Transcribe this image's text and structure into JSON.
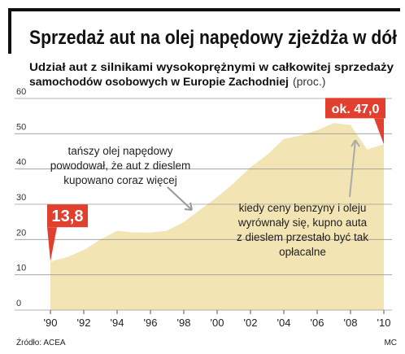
{
  "chart_data": {
    "type": "area",
    "title": "Sprzedaż aut na olej napędowy zjeżdża w dół",
    "subtitle": [
      "Udział aut z silnikami wysokoprężnymi w całkowitej sprzedaży",
      "samochodów osobowych w Europie Zachodniej"
    ],
    "unit_note": "(proc.)",
    "x": [
      1990,
      1991,
      1992,
      1993,
      1994,
      1995,
      1996,
      1997,
      1998,
      1999,
      2000,
      2001,
      2002,
      2003,
      2004,
      2005,
      2006,
      2007,
      2008,
      2009,
      2010
    ],
    "values": [
      13.8,
      15,
      17,
      20,
      22.5,
      22,
      22,
      22.5,
      25,
      28.5,
      32,
      36,
      40.5,
      44,
      48.5,
      49.5,
      51,
      53,
      52.5,
      45.5,
      47.0
    ],
    "value_labels": [
      "13,8",
      null,
      null,
      null,
      null,
      null,
      null,
      null,
      null,
      null,
      null,
      null,
      null,
      null,
      null,
      null,
      null,
      null,
      null,
      null,
      "ok. 47,0"
    ],
    "color": "#f3e4b3",
    "label_color": "#e2402e",
    "xlim": [
      1990,
      2010
    ],
    "xticks": [
      {
        "value": 1990,
        "label": "'90"
      },
      {
        "value": 1992,
        "label": "'92"
      },
      {
        "value": 1994,
        "label": "'94"
      },
      {
        "value": 1996,
        "label": "'96"
      },
      {
        "value": 1998,
        "label": "'98"
      },
      {
        "value": 2000,
        "label": "'00"
      },
      {
        "value": 2002,
        "label": "'02"
      },
      {
        "value": 2004,
        "label": "'04"
      },
      {
        "value": 2006,
        "label": "'06"
      },
      {
        "value": 2008,
        "label": "'08"
      },
      {
        "value": 2010,
        "label": "'10"
      }
    ],
    "ylim": [
      0,
      60
    ],
    "yticks": [
      0,
      10,
      20,
      30,
      40,
      50,
      60
    ],
    "grid": true,
    "annotations": [
      {
        "lines": [
          "tańszy olej napędowy",
          "powodował, że aut z dieslem",
          "kupowano coraz więcej"
        ]
      },
      {
        "lines": [
          "kiedy ceny benzyny i oleju",
          "wyrównały się, kupno auta",
          "z dieslem przestało być tak",
          "opłacalne"
        ]
      }
    ],
    "source": "Źródło: ACEA",
    "credit": "MC"
  }
}
